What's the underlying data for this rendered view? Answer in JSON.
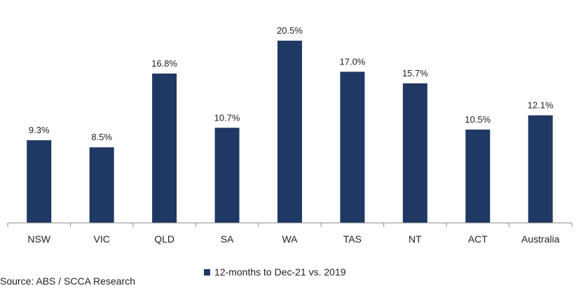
{
  "chart_data": {
    "type": "bar",
    "categories": [
      "NSW",
      "VIC",
      "QLD",
      "SA",
      "WA",
      "TAS",
      "NT",
      "ACT",
      "Australia"
    ],
    "series": [
      {
        "name": "12-months to Dec-21 vs. 2019",
        "values": [
          9.3,
          8.5,
          16.8,
          10.7,
          20.5,
          17.0,
          15.7,
          10.5,
          12.1
        ],
        "labels": [
          "9.3%",
          "8.5%",
          "16.8%",
          "10.7%",
          "20.5%",
          "17.0%",
          "15.7%",
          "10.5%",
          "12.1%"
        ]
      }
    ],
    "ylim": [
      0,
      20.5
    ],
    "color": "#1f3864",
    "legend_position": "bottom",
    "grid": false
  },
  "source_note": "Source: ABS / SCCA Research"
}
